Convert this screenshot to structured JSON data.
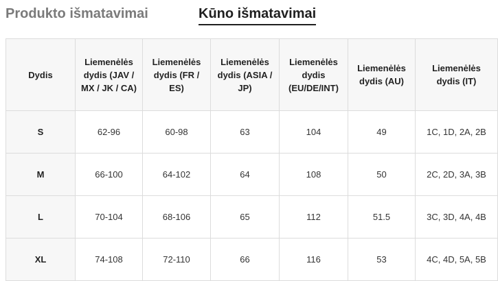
{
  "tabs": [
    {
      "label": "Produkto išmatavimai",
      "active": false
    },
    {
      "label": "Kūno išmatavimai",
      "active": true
    }
  ],
  "table": {
    "headers": [
      "Dydis",
      "Liemenėlės dydis (JAV / MX / JK / CA)",
      "Liemenėlės dydis (FR / ES)",
      "Liemenėlės dydis (ASIA / JP)",
      "Liemenėlės dydis (EU/DE/INT)",
      "Liemenėlės dydis (AU)",
      "Liemenėlės dydis (IT)"
    ],
    "rows": [
      [
        "S",
        "62-96",
        "60-98",
        "63",
        "104",
        "49",
        "1C, 1D, 2A, 2B"
      ],
      [
        "M",
        "66-100",
        "64-102",
        "64",
        "108",
        "50",
        "2C, 2D, 3A, 3B"
      ],
      [
        "L",
        "70-104",
        "68-106",
        "65",
        "112",
        "51.5",
        "3C, 3D, 4A, 4B"
      ],
      [
        "XL",
        "74-108",
        "72-110",
        "66",
        "116",
        "53",
        "4C, 4D, 5A, 5B"
      ]
    ]
  },
  "colors": {
    "header_bg": "#f7f7f7",
    "border": "#dcdcdc",
    "inactive_tab": "#7a7a7a",
    "active_tab": "#1f1f1f"
  }
}
